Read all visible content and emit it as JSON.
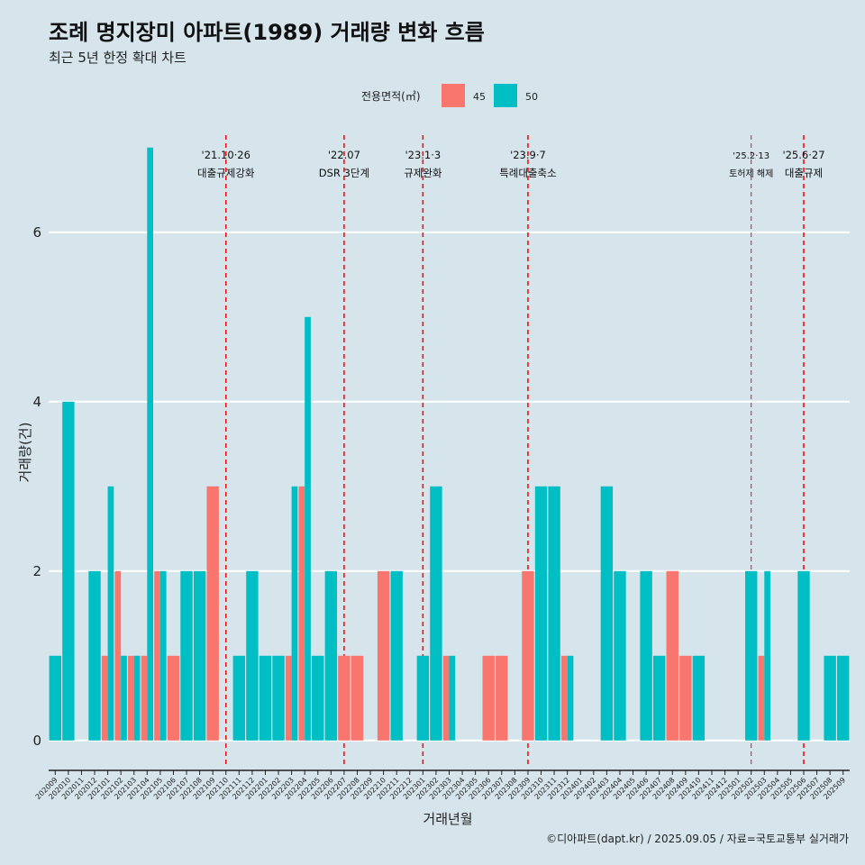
{
  "chart_data": {
    "type": "bar",
    "title": "조례 명지장미 아파트(1989) 거래량 변화 흐름",
    "subtitle": "최근 5년 한정 확대 차트",
    "xlabel": "거래년월",
    "ylabel": "거래량(건)",
    "caption": "©디아파트(dapt.kr) / 2025.09.05 / 자료=국토교통부 실거래가",
    "legend": {
      "title": "전용면적(㎡)",
      "position": "top"
    },
    "ylim": [
      -0.3,
      7.2
    ],
    "yticks": [
      0,
      2,
      4,
      6
    ],
    "grid": true,
    "categories": [
      "202009",
      "202010",
      "202011",
      "202012",
      "202101",
      "202102",
      "202103",
      "202104",
      "202105",
      "202106",
      "202107",
      "202108",
      "202109",
      "202110",
      "202111",
      "202112",
      "202201",
      "202202",
      "202203",
      "202204",
      "202205",
      "202206",
      "202207",
      "202208",
      "202209",
      "202210",
      "202211",
      "202212",
      "202301",
      "202302",
      "202303",
      "202304",
      "202305",
      "202306",
      "202307",
      "202308",
      "202309",
      "202310",
      "202311",
      "202312",
      "202401",
      "202402",
      "202403",
      "202404",
      "202405",
      "202406",
      "202407",
      "202408",
      "202409",
      "202410",
      "202411",
      "202412",
      "202501",
      "202502",
      "202503",
      "202504",
      "202505",
      "202506",
      "202507",
      "202508",
      "202509"
    ],
    "series": [
      {
        "name": "45",
        "color": "#f8766d",
        "values": [
          0,
          0,
          0,
          0,
          1,
          2,
          1,
          1,
          2,
          1,
          0,
          0,
          3,
          0,
          0,
          0,
          0,
          0,
          1,
          3,
          0,
          0,
          1,
          1,
          0,
          2,
          0,
          0,
          0,
          0,
          1,
          0,
          0,
          1,
          1,
          0,
          2,
          0,
          0,
          1,
          0,
          0,
          0,
          0,
          0,
          0,
          0,
          2,
          1,
          0,
          0,
          0,
          0,
          0,
          1,
          0,
          0,
          0,
          0,
          0,
          0
        ]
      },
      {
        "name": "50",
        "color": "#00bfc4",
        "values": [
          1,
          4,
          0,
          2,
          3,
          1,
          1,
          7,
          2,
          0,
          2,
          2,
          0,
          0,
          1,
          2,
          1,
          1,
          3,
          5,
          1,
          2,
          0,
          0,
          0,
          0,
          2,
          0,
          1,
          3,
          1,
          0,
          0,
          0,
          0,
          0,
          0,
          3,
          3,
          1,
          0,
          0,
          3,
          2,
          0,
          2,
          1,
          0,
          0,
          1,
          0,
          0,
          0,
          2,
          2,
          0,
          0,
          2,
          0,
          1,
          1
        ]
      }
    ],
    "annotations": [
      {
        "x": "202110",
        "line1": "'21.10·26",
        "line2": "대출규제강화",
        "dash": "thick"
      },
      {
        "x": "202207",
        "line1": "'22.07",
        "line2": "DSR 3단계",
        "dash": "thick"
      },
      {
        "x": "202301",
        "line1": "'23.1·3",
        "line2": "규제완화",
        "dash": "thick"
      },
      {
        "x": "202309",
        "line1": "'23.9·7",
        "line2": "특례대출축소",
        "dash": "thick"
      },
      {
        "x": "202502",
        "line1": "'25.2·13",
        "line2": "토허제 해제",
        "dash": "thin"
      },
      {
        "x": "202506",
        "line1": "'25.6·27",
        "line2": "대출규제",
        "dash": "thick"
      }
    ]
  }
}
